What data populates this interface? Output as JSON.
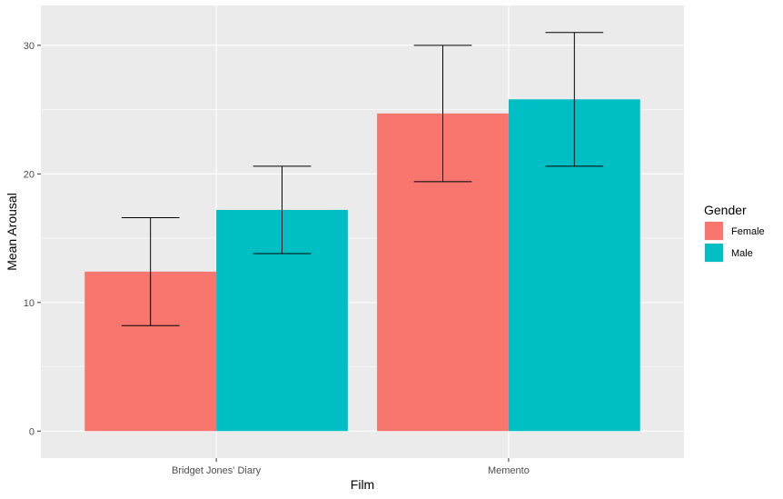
{
  "chart_data": {
    "type": "bar",
    "categories": [
      "Bridget Jones' Diary",
      "Memento"
    ],
    "series": [
      {
        "name": "Female",
        "color": "#F8766D",
        "values": [
          12.4,
          24.7
        ],
        "error_low": [
          8.2,
          19.4
        ],
        "error_high": [
          16.6,
          30.0
        ]
      },
      {
        "name": "Male",
        "color": "#00BFC4",
        "values": [
          17.2,
          25.8
        ],
        "error_low": [
          13.8,
          20.6
        ],
        "error_high": [
          20.6,
          31.0
        ]
      }
    ],
    "xlabel": "Film",
    "ylabel": "Mean Arousal",
    "ylim": [
      -2.1,
      33.1
    ],
    "yticks": [
      0,
      10,
      20,
      30
    ],
    "legend": {
      "title": "Gender",
      "position": "right"
    },
    "grid": true,
    "panel_background": "#EBEBEB",
    "grid_color": "#FFFFFF"
  }
}
